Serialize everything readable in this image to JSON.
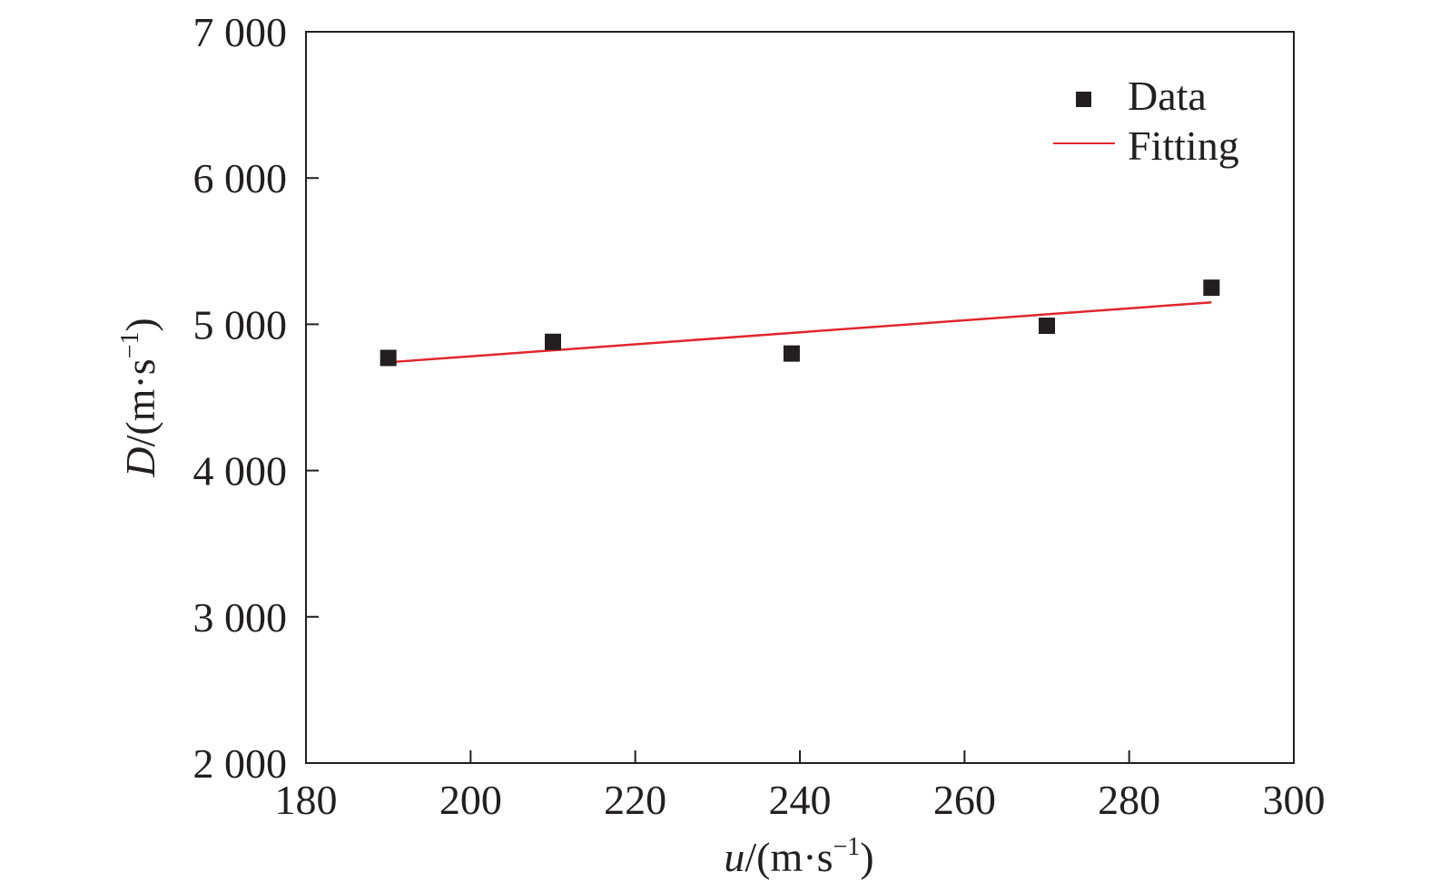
{
  "chart_data": {
    "type": "scatter",
    "title": "",
    "xlabel": {
      "var": "u",
      "unit_prefix": "/(m·s",
      "unit_sup": "−1",
      "unit_suffix": ")"
    },
    "ylabel": {
      "var": "D",
      "unit_prefix": "/(m·s",
      "unit_sup": "−1",
      "unit_suffix": ")"
    },
    "xlim": [
      180,
      300
    ],
    "ylim": [
      2000,
      7000
    ],
    "x_ticks": [
      {
        "value": 180,
        "label": "180"
      },
      {
        "value": 200,
        "label": "200"
      },
      {
        "value": 220,
        "label": "220"
      },
      {
        "value": 240,
        "label": "240"
      },
      {
        "value": 260,
        "label": "260"
      },
      {
        "value": 280,
        "label": "280"
      },
      {
        "value": 300,
        "label": "300"
      }
    ],
    "y_ticks": [
      {
        "value": 2000,
        "label": "2 000"
      },
      {
        "value": 3000,
        "label": "3 000"
      },
      {
        "value": 4000,
        "label": "4 000"
      },
      {
        "value": 5000,
        "label": "5 000"
      },
      {
        "value": 6000,
        "label": "6 000"
      },
      {
        "value": 7000,
        "label": "7 000"
      }
    ],
    "grid": false,
    "legend_position": "top-right",
    "series": [
      {
        "name": "Data",
        "type": "scatter",
        "marker": "square",
        "color": "#231f20",
        "points": [
          {
            "x": 190,
            "y": 4770
          },
          {
            "x": 210,
            "y": 4880
          },
          {
            "x": 239,
            "y": 4800
          },
          {
            "x": 270,
            "y": 4990
          },
          {
            "x": 290,
            "y": 5250
          }
        ]
      },
      {
        "name": "Fitting",
        "type": "line",
        "color": "#e0262d",
        "points": [
          {
            "x": 190,
            "y": 4740
          },
          {
            "x": 290,
            "y": 5150
          }
        ]
      }
    ]
  }
}
